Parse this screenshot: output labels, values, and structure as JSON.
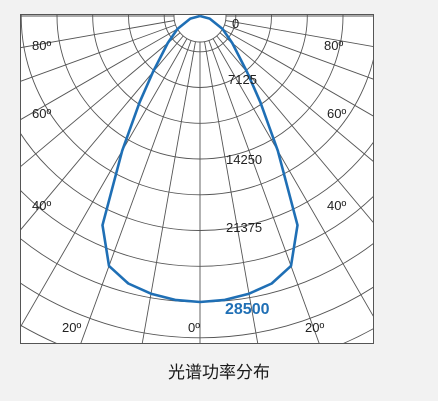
{
  "caption": "光谱功率分布",
  "chart_data": {
    "type": "polar",
    "title": "",
    "angle_ticks": [
      {
        "angle": 80,
        "label": "80º",
        "side": "left"
      },
      {
        "angle": 80,
        "label": "80º",
        "side": "right"
      },
      {
        "angle": 60,
        "label": "60º",
        "side": "left"
      },
      {
        "angle": 60,
        "label": "60º",
        "side": "right"
      },
      {
        "angle": 40,
        "label": "40º",
        "side": "left"
      },
      {
        "angle": 40,
        "label": "40º",
        "side": "right"
      },
      {
        "angle": 20,
        "label": "20º",
        "side": "left"
      },
      {
        "angle": 0,
        "label": "0º",
        "side": "center"
      },
      {
        "angle": 20,
        "label": "20º",
        "side": "right"
      }
    ],
    "radial_ticks": [
      {
        "value": 0,
        "label": "0"
      },
      {
        "value": 7125,
        "label": "7125"
      },
      {
        "value": 14250,
        "label": "14250"
      },
      {
        "value": 21375,
        "label": "21375"
      },
      {
        "value": 28500,
        "label": "28500"
      }
    ],
    "rmax": 28500,
    "grid": true,
    "color": "#1f6fb5",
    "series": [
      {
        "points": [
          [
            -90,
            0
          ],
          [
            -75,
            1000
          ],
          [
            -60,
            2600
          ],
          [
            -50,
            4200
          ],
          [
            -40,
            7300
          ],
          [
            -35,
            10500
          ],
          [
            -30,
            15500
          ],
          [
            -25,
            23000
          ],
          [
            -20,
            26500
          ],
          [
            -15,
            27600
          ],
          [
            -10,
            28100
          ],
          [
            -5,
            28400
          ],
          [
            0,
            28500
          ],
          [
            5,
            28400
          ],
          [
            10,
            28100
          ],
          [
            15,
            27600
          ],
          [
            20,
            26500
          ],
          [
            25,
            23000
          ],
          [
            30,
            15500
          ],
          [
            35,
            10500
          ],
          [
            40,
            7300
          ],
          [
            50,
            4200
          ],
          [
            60,
            2600
          ],
          [
            75,
            1000
          ],
          [
            90,
            0
          ]
        ]
      }
    ]
  }
}
